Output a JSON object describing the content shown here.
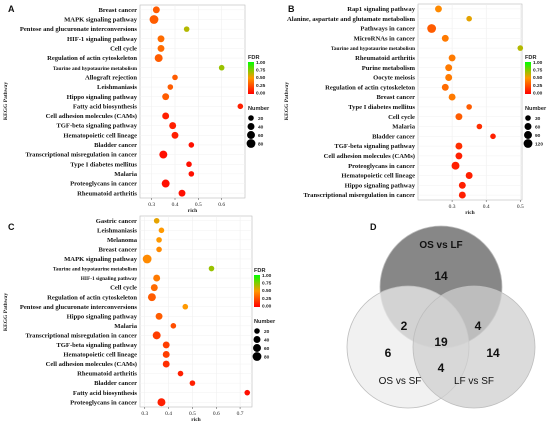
{
  "chart_data": [
    {
      "panel": "A",
      "type": "scatter",
      "xlabel": "rich",
      "ylabel": "KEGG Pathway",
      "xticks": [
        0.3,
        0.4,
        0.5,
        0.6
      ],
      "xlim": [
        0.25,
        0.7
      ],
      "categories": [
        "Breast cancer",
        "MAPK signaling pathway",
        "Pentose and glucuronate interconversions",
        "HIF-1 signaling pathway",
        "Cell cycle",
        "Regulation of actin cytoskeleton",
        "Taurine and hypotaurine metabolism",
        "Allograft rejection",
        "Leishmaniasis",
        "Hippo signaling pathway",
        "Fatty acid biosynthesis",
        "Cell adhesion molecules (CAMs)",
        "TGF-beta signaling pathway",
        "Hematopoietic cell lineage",
        "Bladder cancer",
        "Transcriptional misregulation in cancer",
        "Type I diabetes mellitus",
        "Malaria",
        "Proteoglycans in cancer",
        "Rheumatoid arthritis"
      ],
      "x": [
        0.32,
        0.31,
        0.45,
        0.34,
        0.34,
        0.33,
        0.6,
        0.4,
        0.38,
        0.36,
        0.68,
        0.36,
        0.39,
        0.4,
        0.47,
        0.35,
        0.46,
        0.47,
        0.36,
        0.43
      ],
      "size": [
        40,
        80,
        20,
        40,
        40,
        60,
        20,
        20,
        20,
        40,
        20,
        40,
        40,
        40,
        20,
        60,
        20,
        20,
        60,
        40
      ],
      "fdr": [
        0.3,
        0.3,
        0.65,
        0.35,
        0.35,
        0.3,
        0.7,
        0.3,
        0.3,
        0.3,
        0.1,
        0.1,
        0.1,
        0.1,
        0.05,
        0.05,
        0.05,
        0.05,
        0.05,
        0.05
      ],
      "legend": {
        "color_title": "FDR",
        "color_ticks": [
          "1.00",
          "0.75",
          "0.50",
          "0.25",
          "0.00"
        ],
        "size_title": "Number",
        "size_values": [
          20,
          40,
          60,
          80
        ]
      }
    },
    {
      "panel": "B",
      "type": "scatter",
      "xlabel": "rich",
      "ylabel": "KEGG Pathway",
      "xticks": [
        0.3,
        0.4,
        0.5
      ],
      "xlim": [
        0.2,
        0.505
      ],
      "categories": [
        "Rap1 signaling pathway",
        "Alanine, aspartate and glutamate metabolism",
        "Pathways in cancer",
        "MicroRNAs in cancer",
        "Taurine and hypotaurine metabolism",
        "Rheumatoid arthritis",
        "Purine metabolism",
        "Oocyte meiosis",
        "Regulation of actin cytoskeleton",
        "Breast cancer",
        "Type I diabetes mellitus",
        "Cell cycle",
        "Malaria",
        "Bladder cancer",
        "TGF-beta signaling pathway",
        "Cell adhesion molecules (CAMs)",
        "Proteoglycans in cancer",
        "Hematopoietic cell lineage",
        "Hippo signaling pathway",
        "Transcriptional misregulation in cancer"
      ],
      "x": [
        0.26,
        0.35,
        0.24,
        0.28,
        0.5,
        0.3,
        0.29,
        0.29,
        0.28,
        0.3,
        0.35,
        0.32,
        0.38,
        0.42,
        0.32,
        0.32,
        0.31,
        0.35,
        0.33,
        0.33
      ],
      "size": [
        60,
        30,
        120,
        60,
        30,
        60,
        60,
        60,
        60,
        60,
        30,
        60,
        30,
        30,
        60,
        60,
        90,
        60,
        60,
        60
      ],
      "fdr": [
        0.45,
        0.55,
        0.3,
        0.4,
        0.65,
        0.4,
        0.4,
        0.4,
        0.35,
        0.4,
        0.3,
        0.3,
        0.15,
        0.1,
        0.15,
        0.1,
        0.1,
        0.1,
        0.1,
        0.1
      ],
      "legend": {
        "color_title": "FDR",
        "color_ticks": [
          "1.00",
          "0.75",
          "0.50",
          "0.25",
          "0.00"
        ],
        "size_title": "Number",
        "size_values": [
          30,
          60,
          90,
          120
        ]
      }
    },
    {
      "panel": "C",
      "type": "scatter",
      "xlabel": "rich",
      "ylabel": "KEGG Pathway",
      "xticks": [
        0.3,
        0.4,
        0.5,
        0.6,
        0.7
      ],
      "xlim": [
        0.28,
        0.75
      ],
      "categories": [
        "Gastric cancer",
        "Leishmaniasis",
        "Melanoma",
        "Breast cancer",
        "MAPK signaling pathway",
        "Taurine and hypotaurine metabolism",
        "HIF-1 signaling pathway",
        "Cell cycle",
        "Regulation of actin cytoskeleton",
        "Pentose and glucuronate interconversions",
        "Hippo signaling pathway",
        "Malaria",
        "Transcriptional misregulation in cancer",
        "TGF-beta signaling pathway",
        "Hematopoietic cell lineage",
        "Cell adhesion molecules (CAMs)",
        "Rheumatoid arthritis",
        "Bladder cancer",
        "Fatty acid biosynthesis",
        "Proteoglycans in cancer"
      ],
      "x": [
        0.35,
        0.37,
        0.36,
        0.36,
        0.31,
        0.58,
        0.35,
        0.34,
        0.33,
        0.47,
        0.36,
        0.42,
        0.35,
        0.39,
        0.39,
        0.39,
        0.45,
        0.5,
        0.73,
        0.37
      ],
      "size": [
        20,
        20,
        20,
        20,
        80,
        20,
        40,
        40,
        60,
        20,
        40,
        20,
        60,
        40,
        40,
        40,
        20,
        20,
        20,
        60
      ],
      "fdr": [
        0.55,
        0.5,
        0.5,
        0.45,
        0.45,
        0.7,
        0.4,
        0.35,
        0.3,
        0.5,
        0.3,
        0.25,
        0.2,
        0.2,
        0.2,
        0.15,
        0.1,
        0.1,
        0.05,
        0.1
      ],
      "legend": {
        "color_title": "FDR",
        "color_ticks": [
          "1.00",
          "0.75",
          "0.50",
          "0.25",
          "0.00"
        ],
        "size_title": "Number",
        "size_values": [
          20,
          40,
          60,
          80
        ]
      }
    },
    {
      "panel": "D",
      "type": "venn",
      "sets": [
        "OS vs LF",
        "OS vs SF",
        "LF vs SF"
      ],
      "regions": {
        "only_os_lf": 14,
        "only_os_sf": 6,
        "only_lf_sf": 14,
        "os_lf_and_os_sf": 2,
        "os_lf_and_lf_sf": 4,
        "os_sf_and_lf_sf": 4,
        "all_three": 19
      },
      "colors": {
        "os_lf": "#7a7a7a",
        "os_sf": "#ececec",
        "lf_sf": "#cfcfcf"
      }
    }
  ],
  "colors": {
    "low_fdr": "#ff0000",
    "mid_fdr": "#ff9900",
    "high_fdr": "#00ff00"
  }
}
